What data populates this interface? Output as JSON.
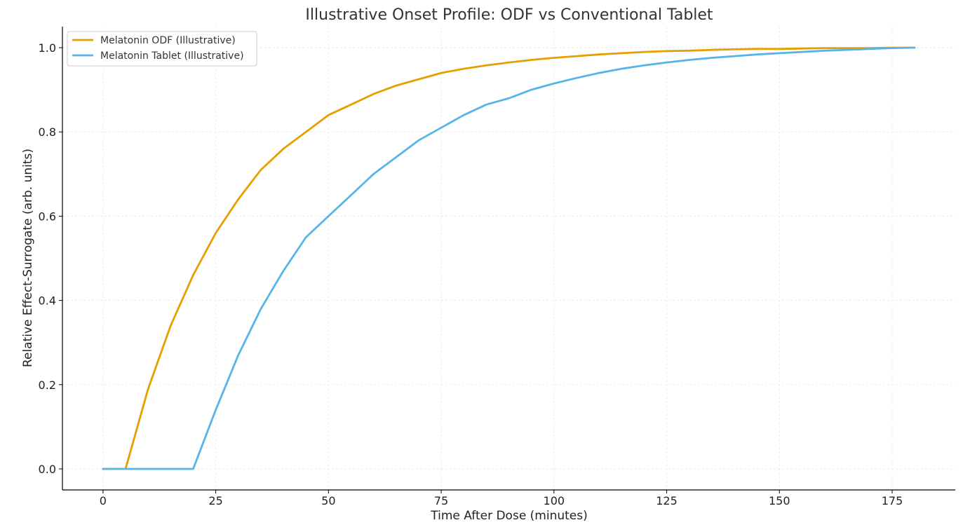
{
  "chart_data": {
    "type": "line",
    "title": "Illustrative Onset Profile: ODF vs Conventional Tablet",
    "xlabel": "Time After Dose (minutes)",
    "ylabel": "Relative Effect-Surrogate (arb. units)",
    "xlim": [
      -9,
      189
    ],
    "ylim": [
      -0.05,
      1.05
    ],
    "xticks": [
      0,
      25,
      50,
      75,
      100,
      125,
      150,
      175
    ],
    "xtick_labels": [
      "0",
      "25",
      "50",
      "75",
      "100",
      "125",
      "150",
      "175"
    ],
    "yticks": [
      0.0,
      0.2,
      0.4,
      0.6,
      0.8,
      1.0
    ],
    "ytick_labels": [
      "0.0",
      "0.2",
      "0.4",
      "0.6",
      "0.8",
      "1.0"
    ],
    "grid": true,
    "legend_position": "top-left",
    "series": [
      {
        "name": "Melatonin ODF (Illustrative)",
        "color": "#E69F00",
        "x": [
          0,
          5,
          10,
          15,
          20,
          25,
          30,
          35,
          40,
          45,
          50,
          55,
          60,
          65,
          70,
          75,
          80,
          85,
          90,
          95,
          100,
          105,
          110,
          115,
          120,
          125,
          130,
          135,
          140,
          145,
          150,
          155,
          160,
          165,
          170,
          175,
          180
        ],
        "y": [
          0.0,
          0.0,
          0.19,
          0.34,
          0.46,
          0.56,
          0.64,
          0.71,
          0.76,
          0.8,
          0.84,
          0.865,
          0.89,
          0.91,
          0.925,
          0.94,
          0.95,
          0.958,
          0.965,
          0.971,
          0.976,
          0.98,
          0.984,
          0.987,
          0.99,
          0.992,
          0.993,
          0.995,
          0.996,
          0.997,
          0.997,
          0.998,
          0.999,
          0.999,
          0.999,
          1.0,
          1.0
        ]
      },
      {
        "name": "Melatonin Tablet (Illustrative)",
        "color": "#56B4E9",
        "x": [
          0,
          5,
          10,
          15,
          20,
          25,
          30,
          35,
          40,
          45,
          50,
          55,
          60,
          65,
          70,
          75,
          80,
          85,
          90,
          95,
          100,
          105,
          110,
          115,
          120,
          125,
          130,
          135,
          140,
          145,
          150,
          155,
          160,
          165,
          170,
          175,
          180
        ],
        "y": [
          0.0,
          0.0,
          0.0,
          0.0,
          0.0,
          0.14,
          0.27,
          0.38,
          0.47,
          0.55,
          0.6,
          0.65,
          0.7,
          0.74,
          0.78,
          0.81,
          0.84,
          0.865,
          0.88,
          0.9,
          0.915,
          0.928,
          0.94,
          0.95,
          0.958,
          0.965,
          0.971,
          0.976,
          0.98,
          0.984,
          0.987,
          0.99,
          0.993,
          0.995,
          0.997,
          0.999,
          1.0
        ]
      }
    ]
  }
}
